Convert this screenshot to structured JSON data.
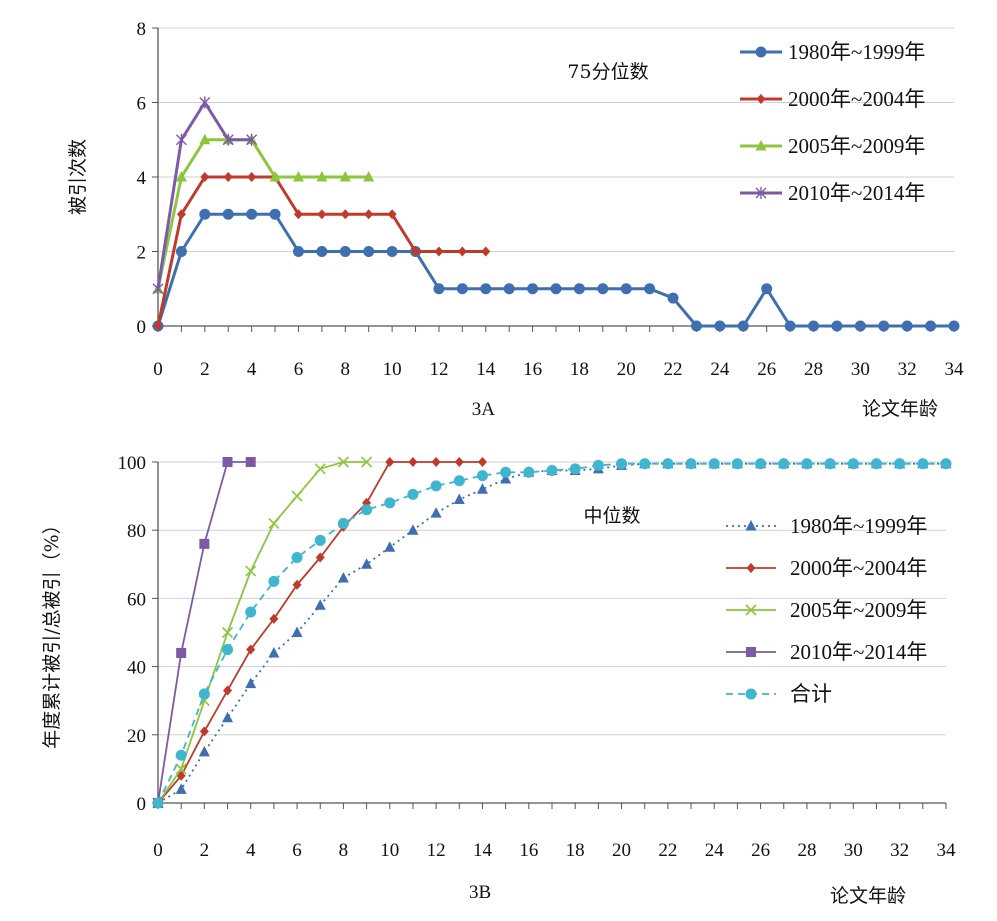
{
  "chart_data": [
    {
      "id": "3A",
      "type": "line",
      "annotation": "75分位数",
      "caption": "3A",
      "xlabel": "论文年龄",
      "ylabel": "被引次数",
      "xlim": [
        0,
        34
      ],
      "ylim": [
        0,
        8
      ],
      "x_ticks": [
        0,
        2,
        4,
        6,
        8,
        10,
        12,
        14,
        16,
        18,
        20,
        22,
        24,
        26,
        28,
        30,
        32,
        34
      ],
      "y_ticks": [
        0,
        2,
        4,
        6,
        8
      ],
      "grid": "horizontal",
      "legend_position": "top-right",
      "series": [
        {
          "name": "1980年~1999年",
          "color": "#3f6fb0",
          "marker": "circle",
          "dash": "solid",
          "x": [
            0,
            1,
            2,
            3,
            4,
            5,
            6,
            7,
            8,
            9,
            10,
            11,
            12,
            13,
            14,
            15,
            16,
            17,
            18,
            19,
            20,
            21,
            22,
            23,
            24,
            25,
            26,
            27,
            28,
            29,
            30,
            31,
            32,
            33,
            34
          ],
          "values": [
            0,
            2,
            3,
            3,
            3,
            3,
            2,
            2,
            2,
            2,
            2,
            2,
            1,
            1,
            1,
            1,
            1,
            1,
            1,
            1,
            1,
            1,
            0.75,
            0,
            0,
            0,
            1,
            0,
            0,
            0,
            0,
            0,
            0,
            0,
            0
          ]
        },
        {
          "name": "2000年~2004年",
          "color": "#c0392b",
          "marker": "diamond",
          "dash": "solid",
          "x": [
            0,
            1,
            2,
            3,
            4,
            5,
            6,
            7,
            8,
            9,
            10,
            11,
            12,
            13,
            14
          ],
          "values": [
            0,
            3,
            4,
            4,
            4,
            4,
            3,
            3,
            3,
            3,
            3,
            2,
            2,
            2,
            2
          ]
        },
        {
          "name": "2005年~2009年",
          "color": "#8cc63f",
          "marker": "triangle",
          "dash": "solid",
          "x": [
            0,
            1,
            2,
            3,
            4,
            5,
            6,
            7,
            8,
            9
          ],
          "values": [
            1,
            4,
            5,
            5,
            5,
            4,
            4,
            4,
            4,
            4
          ]
        },
        {
          "name": "2010年~2014年",
          "color": "#7d5aa6",
          "marker": "star",
          "dash": "solid",
          "x": [
            0,
            1,
            2,
            3,
            4
          ],
          "values": [
            1,
            5,
            6,
            5,
            5
          ]
        }
      ]
    },
    {
      "id": "3B",
      "type": "line",
      "annotation": "中位数",
      "caption": "3B",
      "xlabel": "论文年龄",
      "ylabel": "年度累计被引/总被引（%）",
      "xlim": [
        0,
        34
      ],
      "ylim": [
        0,
        100
      ],
      "x_ticks": [
        0,
        2,
        4,
        6,
        8,
        10,
        12,
        14,
        16,
        18,
        20,
        22,
        24,
        26,
        28,
        30,
        32,
        34
      ],
      "y_ticks": [
        0,
        20,
        40,
        60,
        80,
        100
      ],
      "grid": "horizontal",
      "legend_position": "right",
      "series": [
        {
          "name": "1980年~1999年",
          "color": "#3f6fb0",
          "marker": "triangle",
          "dash": "dotted",
          "x": [
            0,
            1,
            2,
            3,
            4,
            5,
            6,
            7,
            8,
            9,
            10,
            11,
            12,
            13,
            14,
            15,
            16,
            17,
            18,
            19,
            20,
            21,
            22,
            23,
            24,
            25,
            26,
            27,
            28,
            29,
            30,
            31,
            32,
            33,
            34
          ],
          "values": [
            0,
            4,
            15,
            25,
            35,
            44,
            50,
            58,
            66,
            70,
            75,
            80,
            85,
            89,
            92,
            95,
            97,
            97.5,
            97.5,
            98,
            99,
            99.5,
            99.5,
            99.5,
            99.5,
            99.5,
            99.5,
            99.5,
            99.5,
            99.5,
            99.5,
            99.5,
            99.5,
            99.5,
            99.5
          ]
        },
        {
          "name": "2000年~2004年",
          "color": "#c0392b",
          "marker": "diamond",
          "dash": "solid",
          "x": [
            0,
            1,
            2,
            3,
            4,
            5,
            6,
            7,
            8,
            9,
            10,
            11,
            12,
            13,
            14
          ],
          "values": [
            0,
            8,
            21,
            33,
            45,
            54,
            64,
            72,
            81,
            88,
            100,
            100,
            100,
            100,
            100
          ]
        },
        {
          "name": "2005年~2009年",
          "color": "#8cc63f",
          "marker": "cross",
          "dash": "solid",
          "x": [
            0,
            1,
            2,
            3,
            4,
            5,
            6,
            7,
            8,
            9
          ],
          "values": [
            0,
            10,
            30,
            50,
            68,
            82,
            90,
            98,
            100,
            100
          ]
        },
        {
          "name": "2010年~2014年",
          "color": "#7d5aa6",
          "marker": "square",
          "dash": "solid",
          "x": [
            0,
            1,
            2,
            3,
            4
          ],
          "values": [
            0,
            44,
            76,
            100,
            100
          ]
        },
        {
          "name": "合计",
          "color": "#3fb5d0",
          "marker": "circle",
          "dash": "dashed",
          "x": [
            0,
            1,
            2,
            3,
            4,
            5,
            6,
            7,
            8,
            9,
            10,
            11,
            12,
            13,
            14,
            15,
            16,
            17,
            18,
            19,
            20,
            21,
            22,
            23,
            24,
            25,
            26,
            27,
            28,
            29,
            30,
            31,
            32,
            33,
            34
          ],
          "values": [
            0,
            14,
            32,
            45,
            56,
            65,
            72,
            77,
            82,
            86,
            88,
            90.5,
            93,
            94.5,
            96,
            97,
            97,
            97.5,
            98,
            99,
            99.5,
            99.5,
            99.5,
            99.5,
            99.5,
            99.5,
            99.5,
            99.5,
            99.5,
            99.5,
            99.5,
            99.5,
            99.5,
            99.5,
            99.5
          ]
        }
      ]
    }
  ]
}
